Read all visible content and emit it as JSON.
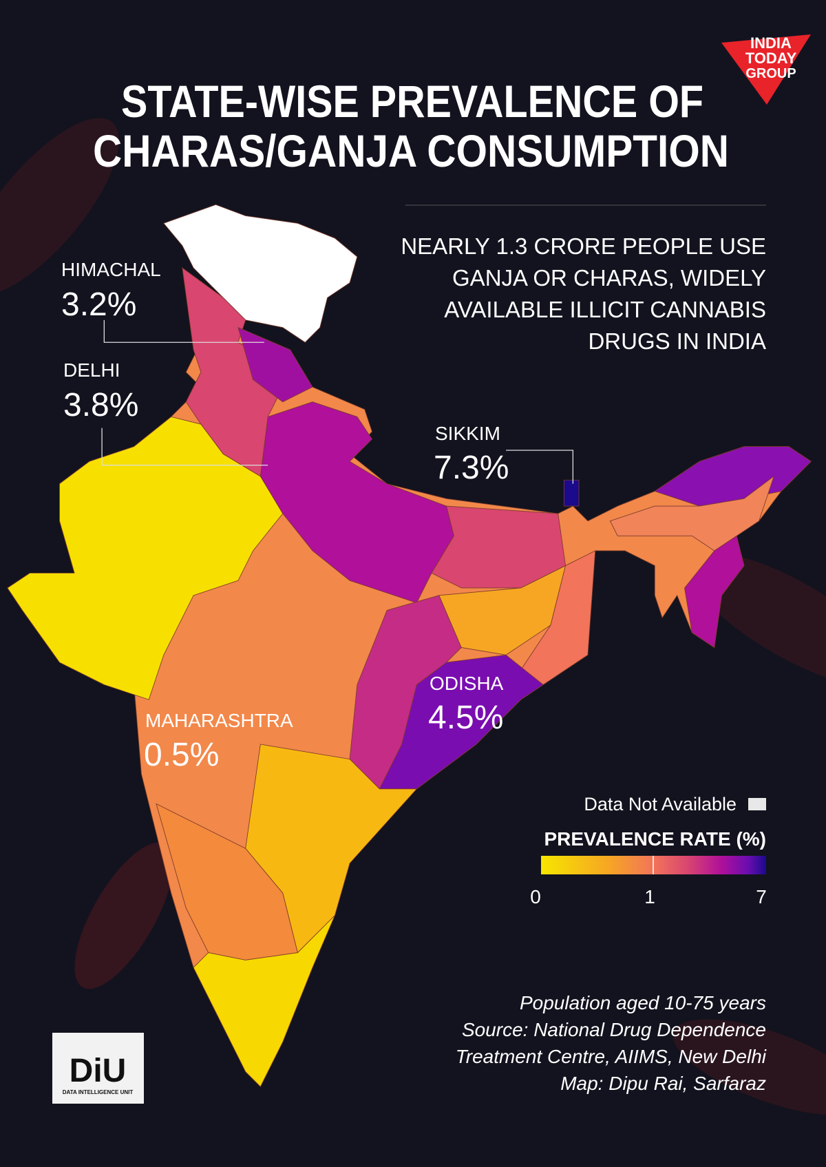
{
  "header": {
    "title_lines": [
      "STATE-WISE PREVALENCE OF",
      "CHARAS/GANJA CONSUMPTION"
    ],
    "subtitle_lines": [
      "NEARLY 1.3 CRORE PEOPLE USE",
      "GANJA OR CHARAS, WIDELY",
      "AVAILABLE ILLICIT CANNABIS",
      "DRUGS IN INDIA"
    ]
  },
  "brand": {
    "lines": [
      "INDIA",
      "TODAY",
      "GROUP"
    ]
  },
  "callouts": [
    {
      "name": "HIMACHAL",
      "value": "3.2%"
    },
    {
      "name": "DELHI",
      "value": "3.8%"
    },
    {
      "name": "SIKKIM",
      "value": "7.3%"
    },
    {
      "name": "ODISHA",
      "value": "4.5%"
    },
    {
      "name": "MAHARASHTRA",
      "value": "0.5%"
    }
  ],
  "legend": {
    "na_label": "Data Not Available",
    "title": "PREVALENCE RATE (%)",
    "ticks": [
      0,
      1,
      7
    ]
  },
  "notes": [
    "Population aged 10-75 years",
    "Source: National Drug Dependence",
    "Treatment Centre, AIIMS, New Delhi",
    "Map: Dipu Rai, Sarfaraz"
  ],
  "diu": {
    "logo": "DiU",
    "tagline": "DATA INTELLIGENCE UNIT"
  }
}
